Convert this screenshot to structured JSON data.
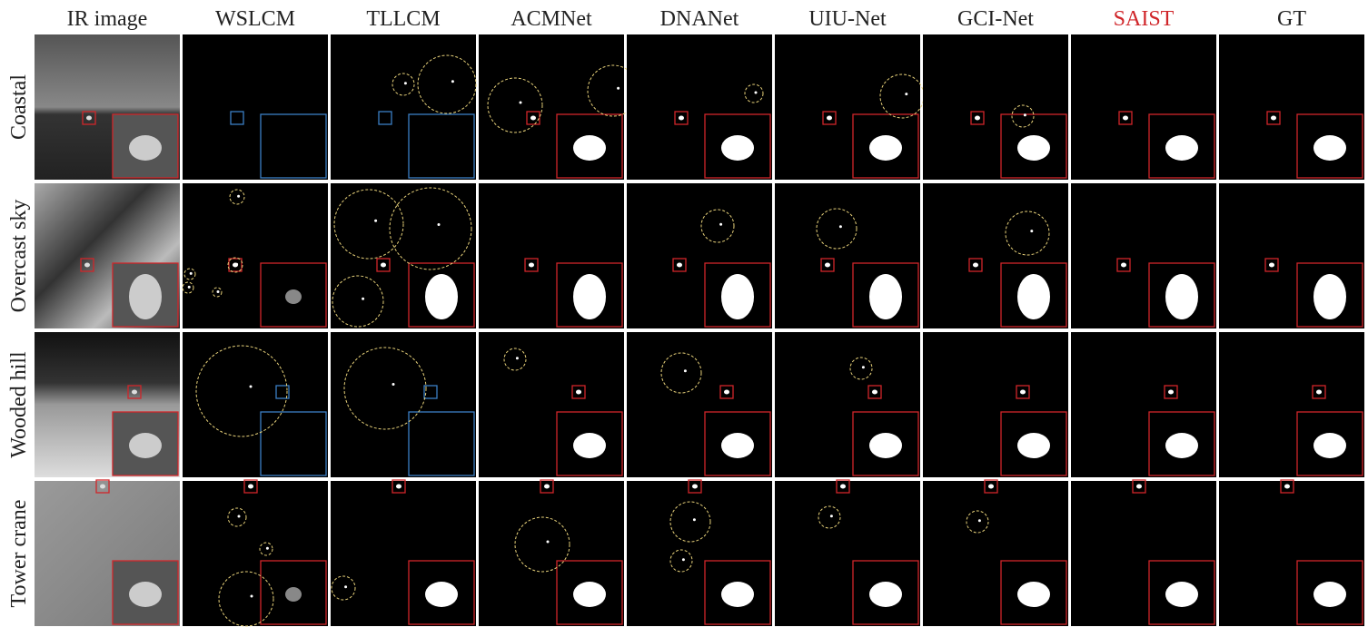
{
  "columns": [
    "IR image",
    "WSLCM",
    "TLLCM",
    "ACMNet",
    "DNANet",
    "UIU-Net",
    "GCI-Net",
    "SAIST",
    "GT"
  ],
  "rows": [
    "Coastal",
    "Overcast sky",
    "Wooded hill",
    "Tower crane"
  ]
}
